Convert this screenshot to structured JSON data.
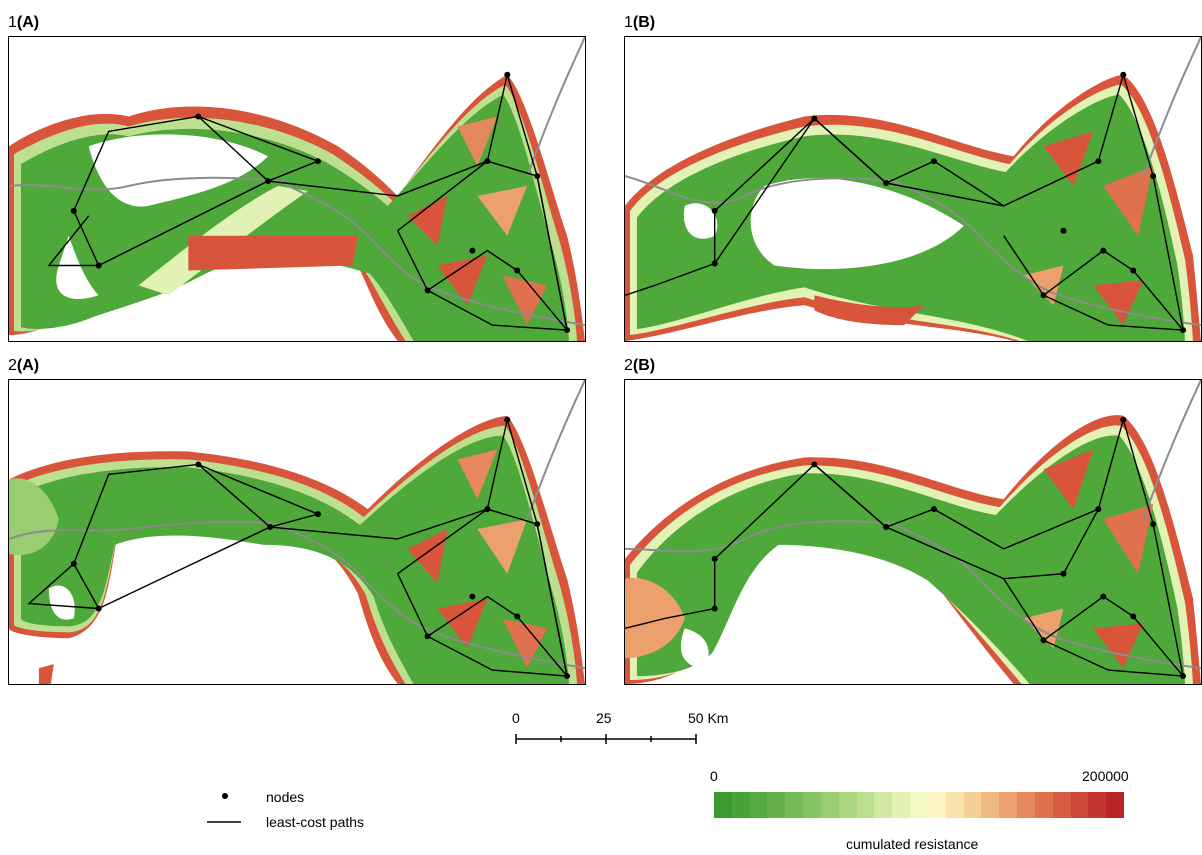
{
  "panels": [
    {
      "id": "1A",
      "prefix": "1",
      "letter": "(A)"
    },
    {
      "id": "1B",
      "prefix": "1",
      "letter": "(B)"
    },
    {
      "id": "2A",
      "prefix": "2",
      "letter": "(A)"
    },
    {
      "id": "2B",
      "prefix": "2",
      "letter": "(B)"
    }
  ],
  "scalebar": {
    "labels": [
      "0",
      "25",
      "50 Km"
    ]
  },
  "legend": {
    "nodes_label": "nodes",
    "paths_label": "least-cost paths"
  },
  "colorbar": {
    "min_label": "0",
    "max_label": "200000",
    "title": "cumulated resistance",
    "colors": [
      "#3a9a2e",
      "#46a236",
      "#55aa3f",
      "#64b249",
      "#75bb55",
      "#87c462",
      "#99cd71",
      "#abd680",
      "#bde090",
      "#cfe9a2",
      "#e1f2b4",
      "#f3f8c4",
      "#fff5c4",
      "#fbe3ad",
      "#f6cf97",
      "#f1b982",
      "#eba06e",
      "#e5885d",
      "#df714f",
      "#d85c43",
      "#cf4838",
      "#c5352f",
      "#bb2427"
    ]
  },
  "colors": {
    "green": "#4ea83a",
    "light": "#d8ebb0",
    "red": "#d8553c",
    "border": "#8c8c8c",
    "node": "#000000"
  }
}
